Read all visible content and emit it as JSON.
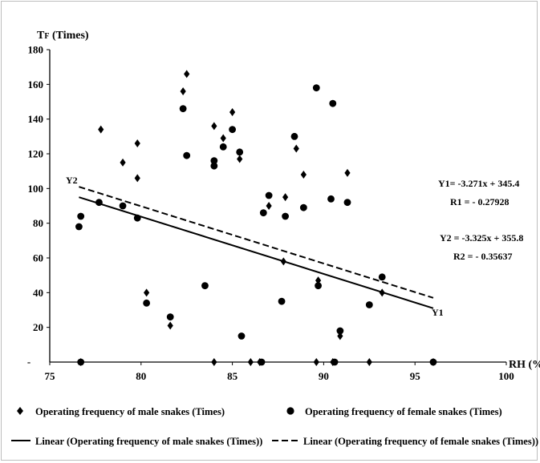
{
  "chart_data": {
    "type": "scatter",
    "title": "",
    "ylabel": "TF (Times)",
    "ylabel_main": "T",
    "ylabel_sub": "F",
    "ylabel_rest": " (Times)",
    "xlabel": "RH (%",
    "xlim": [
      75,
      100
    ],
    "ylim": [
      0,
      180
    ],
    "x_ticks": [
      75,
      80,
      85,
      90,
      95,
      100
    ],
    "y_ticks": [
      20,
      40,
      60,
      80,
      100,
      120,
      140,
      160,
      180
    ],
    "zero_tick_label": "-",
    "grid": false,
    "legend_position": "bottom",
    "series": [
      {
        "name": "Operating frequency of male snakes (Times)",
        "marker": "diamond",
        "points": [
          [
            76.7,
            0
          ],
          [
            77.8,
            134
          ],
          [
            79.0,
            115
          ],
          [
            79.8,
            126
          ],
          [
            79.8,
            106
          ],
          [
            80.3,
            40
          ],
          [
            81.6,
            21
          ],
          [
            82.3,
            156
          ],
          [
            82.5,
            166
          ],
          [
            84.0,
            136
          ],
          [
            84.0,
            0
          ],
          [
            84.5,
            129
          ],
          [
            85.0,
            144
          ],
          [
            85.4,
            117
          ],
          [
            86.0,
            0
          ],
          [
            86.5,
            0
          ],
          [
            87.0,
            90
          ],
          [
            87.8,
            58
          ],
          [
            87.9,
            95
          ],
          [
            88.5,
            123
          ],
          [
            88.9,
            108
          ],
          [
            89.6,
            0
          ],
          [
            89.7,
            47
          ],
          [
            90.5,
            0
          ],
          [
            90.9,
            15
          ],
          [
            91.3,
            109
          ],
          [
            92.5,
            0
          ],
          [
            93.2,
            40
          ],
          [
            96.0,
            0
          ]
        ]
      },
      {
        "name": "Operating frequency of female snakes (Times)",
        "marker": "circle",
        "points": [
          [
            76.6,
            78
          ],
          [
            76.7,
            84
          ],
          [
            76.7,
            0
          ],
          [
            77.7,
            92
          ],
          [
            79.0,
            90
          ],
          [
            79.8,
            83
          ],
          [
            80.3,
            34
          ],
          [
            81.6,
            26
          ],
          [
            82.3,
            146
          ],
          [
            82.5,
            119
          ],
          [
            83.5,
            44
          ],
          [
            84.0,
            116
          ],
          [
            84.0,
            113
          ],
          [
            84.5,
            124
          ],
          [
            85.0,
            134
          ],
          [
            85.4,
            121
          ],
          [
            85.5,
            15
          ],
          [
            86.6,
            0
          ],
          [
            86.7,
            86
          ],
          [
            87.0,
            96
          ],
          [
            87.7,
            35
          ],
          [
            87.9,
            84
          ],
          [
            88.4,
            130
          ],
          [
            88.9,
            89
          ],
          [
            89.6,
            158
          ],
          [
            89.7,
            44
          ],
          [
            90.4,
            94
          ],
          [
            90.5,
            149
          ],
          [
            90.6,
            0
          ],
          [
            90.9,
            18
          ],
          [
            91.3,
            92
          ],
          [
            92.5,
            33
          ],
          [
            93.2,
            49
          ],
          [
            96.0,
            0
          ]
        ]
      },
      {
        "name": "Linear (Operating frequency of male snakes (Times))",
        "type": "line",
        "style": "solid",
        "label": "Y1",
        "equation": "Y1= -3.271x + 345.4",
        "r_value": "R1 = - 0.27928",
        "x": [
          76.6,
          96.0
        ],
        "y": [
          95,
          31
        ]
      },
      {
        "name": "Linear (Operating frequency of female snakes (Times))",
        "type": "line",
        "style": "dashed",
        "label": "Y2",
        "equation": "Y2 = -3.325x + 355.8",
        "r_value": "R2 = - 0.35637",
        "x": [
          76.6,
          96.0
        ],
        "y": [
          101,
          37
        ]
      }
    ]
  }
}
